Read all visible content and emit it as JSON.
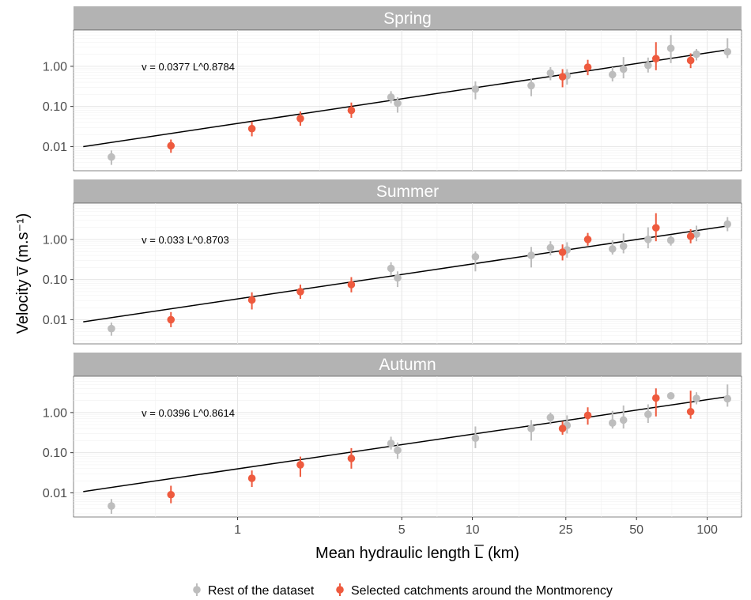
{
  "chart_data": {
    "type": "scatter",
    "xlabel": "Mean hydraulic length L̅ (km)",
    "ylabel": "Velocity v̅ (m.s⁻¹)",
    "x_scale": "log",
    "y_scale": "log",
    "xlim": [
      0.2,
      140
    ],
    "ylim": [
      0.0025,
      8
    ],
    "x_ticks": [
      {
        "value": 1,
        "label": "1"
      },
      {
        "value": 5,
        "label": "5"
      },
      {
        "value": 10,
        "label": "10"
      },
      {
        "value": 25,
        "label": "25"
      },
      {
        "value": 50,
        "label": "50"
      },
      {
        "value": 100,
        "label": "100"
      }
    ],
    "y_ticks": [
      {
        "value": 0.01,
        "label": "0.01"
      },
      {
        "value": 0.1,
        "label": "0.10"
      },
      {
        "value": 1,
        "label": "1.00"
      }
    ],
    "grid": true,
    "legend_position": "bottom",
    "legend": [
      {
        "label": "Rest of the dataset",
        "color": "#bdbdbd"
      },
      {
        "label": "Selected catchments around the Montmorency",
        "color": "#ee5a3e"
      }
    ],
    "colors": {
      "rest": "#bdbdbd",
      "selected": "#ee5a3e",
      "fit": "#000000",
      "strip": "#b3b3b3"
    },
    "fit_x_range": [
      0.22,
      125
    ],
    "panels": [
      {
        "name": "Spring",
        "equation": "v = 0.0377 L^0.8784",
        "fit": {
          "a": 0.0377,
          "b": 0.8784
        },
        "points": [
          {
            "x": 0.29,
            "y": 0.0055,
            "lo": 0.0035,
            "hi": 0.008,
            "group": "rest"
          },
          {
            "x": 0.52,
            "y": 0.0105,
            "lo": 0.007,
            "hi": 0.015,
            "group": "selected"
          },
          {
            "x": 1.15,
            "y": 0.028,
            "lo": 0.018,
            "hi": 0.042,
            "group": "selected"
          },
          {
            "x": 1.85,
            "y": 0.05,
            "lo": 0.033,
            "hi": 0.075,
            "group": "selected"
          },
          {
            "x": 3.05,
            "y": 0.08,
            "lo": 0.052,
            "hi": 0.125,
            "group": "selected"
          },
          {
            "x": 4.5,
            "y": 0.17,
            "lo": 0.12,
            "hi": 0.24,
            "group": "rest"
          },
          {
            "x": 4.8,
            "y": 0.12,
            "lo": 0.07,
            "hi": 0.17,
            "group": "rest"
          },
          {
            "x": 10.3,
            "y": 0.27,
            "lo": 0.15,
            "hi": 0.42,
            "group": "rest"
          },
          {
            "x": 17.8,
            "y": 0.33,
            "lo": 0.18,
            "hi": 0.5,
            "group": "rest"
          },
          {
            "x": 21.5,
            "y": 0.68,
            "lo": 0.45,
            "hi": 0.95,
            "group": "rest"
          },
          {
            "x": 24.2,
            "y": 0.55,
            "lo": 0.3,
            "hi": 0.85,
            "group": "selected"
          },
          {
            "x": 25.3,
            "y": 0.58,
            "lo": 0.35,
            "hi": 0.85,
            "group": "rest"
          },
          {
            "x": 31.0,
            "y": 0.95,
            "lo": 0.6,
            "hi": 1.45,
            "group": "selected"
          },
          {
            "x": 39.5,
            "y": 0.62,
            "lo": 0.42,
            "hi": 0.95,
            "group": "rest"
          },
          {
            "x": 44.0,
            "y": 0.85,
            "lo": 0.5,
            "hi": 1.7,
            "group": "rest"
          },
          {
            "x": 56.0,
            "y": 1.05,
            "lo": 0.7,
            "hi": 1.65,
            "group": "rest"
          },
          {
            "x": 60.5,
            "y": 1.55,
            "lo": 0.8,
            "hi": 4.0,
            "group": "selected"
          },
          {
            "x": 70.0,
            "y": 2.8,
            "lo": 1.2,
            "hi": 6.0,
            "group": "rest"
          },
          {
            "x": 85.0,
            "y": 1.4,
            "lo": 0.9,
            "hi": 2.1,
            "group": "selected"
          },
          {
            "x": 90.0,
            "y": 2.0,
            "lo": 1.4,
            "hi": 2.7,
            "group": "rest"
          },
          {
            "x": 122.0,
            "y": 2.3,
            "lo": 1.6,
            "hi": 5.0,
            "group": "rest"
          }
        ]
      },
      {
        "name": "Summer",
        "equation": "v = 0.033 L^0.8703",
        "fit": {
          "a": 0.033,
          "b": 0.8703
        },
        "points": [
          {
            "x": 0.29,
            "y": 0.006,
            "lo": 0.004,
            "hi": 0.0085,
            "group": "rest"
          },
          {
            "x": 0.52,
            "y": 0.01,
            "lo": 0.0065,
            "hi": 0.0155,
            "group": "selected"
          },
          {
            "x": 1.15,
            "y": 0.031,
            "lo": 0.018,
            "hi": 0.048,
            "group": "selected"
          },
          {
            "x": 1.85,
            "y": 0.05,
            "lo": 0.033,
            "hi": 0.075,
            "group": "selected"
          },
          {
            "x": 3.05,
            "y": 0.075,
            "lo": 0.048,
            "hi": 0.115,
            "group": "selected"
          },
          {
            "x": 4.5,
            "y": 0.19,
            "lo": 0.13,
            "hi": 0.27,
            "group": "rest"
          },
          {
            "x": 4.8,
            "y": 0.11,
            "lo": 0.065,
            "hi": 0.16,
            "group": "rest"
          },
          {
            "x": 10.3,
            "y": 0.37,
            "lo": 0.16,
            "hi": 0.5,
            "group": "rest"
          },
          {
            "x": 17.8,
            "y": 0.4,
            "lo": 0.2,
            "hi": 0.65,
            "group": "rest"
          },
          {
            "x": 21.5,
            "y": 0.62,
            "lo": 0.4,
            "hi": 0.9,
            "group": "rest"
          },
          {
            "x": 24.2,
            "y": 0.48,
            "lo": 0.3,
            "hi": 0.75,
            "group": "selected"
          },
          {
            "x": 25.3,
            "y": 0.55,
            "lo": 0.35,
            "hi": 0.85,
            "group": "rest"
          },
          {
            "x": 31.0,
            "y": 1.0,
            "lo": 0.7,
            "hi": 1.45,
            "group": "selected"
          },
          {
            "x": 39.5,
            "y": 0.58,
            "lo": 0.42,
            "hi": 0.95,
            "group": "rest"
          },
          {
            "x": 44.0,
            "y": 0.68,
            "lo": 0.45,
            "hi": 1.4,
            "group": "rest"
          },
          {
            "x": 56.0,
            "y": 1.0,
            "lo": 0.6,
            "hi": 2.0,
            "group": "rest"
          },
          {
            "x": 60.5,
            "y": 1.95,
            "lo": 0.9,
            "hi": 4.5,
            "group": "selected"
          },
          {
            "x": 70.0,
            "y": 0.95,
            "lo": 0.7,
            "hi": 1.3,
            "group": "rest"
          },
          {
            "x": 85.0,
            "y": 1.2,
            "lo": 0.8,
            "hi": 1.8,
            "group": "selected"
          },
          {
            "x": 90.0,
            "y": 1.35,
            "lo": 0.9,
            "hi": 2.2,
            "group": "rest"
          },
          {
            "x": 122.0,
            "y": 2.4,
            "lo": 1.6,
            "hi": 3.6,
            "group": "rest"
          }
        ]
      },
      {
        "name": "Autumn",
        "equation": "v = 0.0396 L^0.8614",
        "fit": {
          "a": 0.0396,
          "b": 0.8614
        },
        "points": [
          {
            "x": 0.29,
            "y": 0.0047,
            "lo": 0.003,
            "hi": 0.007,
            "group": "rest"
          },
          {
            "x": 0.52,
            "y": 0.009,
            "lo": 0.0055,
            "hi": 0.015,
            "group": "selected"
          },
          {
            "x": 1.15,
            "y": 0.023,
            "lo": 0.014,
            "hi": 0.036,
            "group": "selected"
          },
          {
            "x": 1.85,
            "y": 0.05,
            "lo": 0.025,
            "hi": 0.08,
            "group": "selected"
          },
          {
            "x": 3.05,
            "y": 0.072,
            "lo": 0.04,
            "hi": 0.13,
            "group": "selected"
          },
          {
            "x": 4.5,
            "y": 0.17,
            "lo": 0.12,
            "hi": 0.25,
            "group": "rest"
          },
          {
            "x": 4.8,
            "y": 0.115,
            "lo": 0.07,
            "hi": 0.18,
            "group": "rest"
          },
          {
            "x": 10.3,
            "y": 0.23,
            "lo": 0.13,
            "hi": 0.45,
            "group": "rest"
          },
          {
            "x": 17.8,
            "y": 0.4,
            "lo": 0.2,
            "hi": 0.65,
            "group": "rest"
          },
          {
            "x": 21.5,
            "y": 0.75,
            "lo": 0.5,
            "hi": 1.0,
            "group": "rest"
          },
          {
            "x": 24.2,
            "y": 0.4,
            "lo": 0.28,
            "hi": 0.6,
            "group": "selected"
          },
          {
            "x": 25.3,
            "y": 0.48,
            "lo": 0.3,
            "hi": 0.85,
            "group": "rest"
          },
          {
            "x": 31.0,
            "y": 0.85,
            "lo": 0.5,
            "hi": 1.35,
            "group": "selected"
          },
          {
            "x": 39.5,
            "y": 0.55,
            "lo": 0.4,
            "hi": 1.1,
            "group": "rest"
          },
          {
            "x": 44.0,
            "y": 0.65,
            "lo": 0.4,
            "hi": 1.5,
            "group": "rest"
          },
          {
            "x": 56.0,
            "y": 0.9,
            "lo": 0.55,
            "hi": 1.6,
            "group": "rest"
          },
          {
            "x": 60.5,
            "y": 2.3,
            "lo": 0.8,
            "hi": 4.0,
            "group": "selected"
          },
          {
            "x": 70.0,
            "y": 2.6,
            "lo": 2.2,
            "hi": 3.0,
            "group": "rest"
          },
          {
            "x": 85.0,
            "y": 1.05,
            "lo": 0.7,
            "hi": 3.5,
            "group": "selected"
          },
          {
            "x": 90.0,
            "y": 2.25,
            "lo": 1.6,
            "hi": 3.2,
            "group": "rest"
          },
          {
            "x": 122.0,
            "y": 2.2,
            "lo": 1.4,
            "hi": 5.0,
            "group": "rest"
          }
        ]
      }
    ]
  }
}
